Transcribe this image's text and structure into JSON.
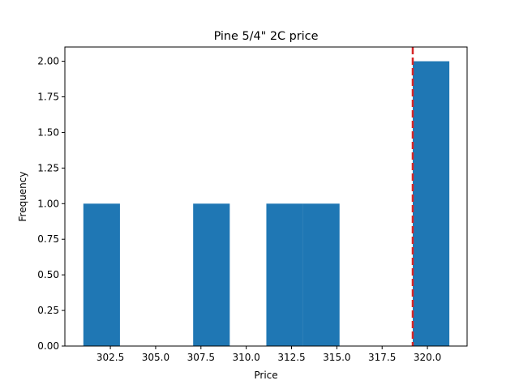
{
  "chart_data": {
    "type": "bar",
    "title": "Pine 5/4\" 2C price",
    "xlabel": "Price",
    "ylabel": "Frequency",
    "xlim": [
      299.99,
      322.19
    ],
    "ylim": [
      0,
      2.1
    ],
    "bins": [
      {
        "x0": 301.01,
        "x1": 303.03,
        "count": 1
      },
      {
        "x0": 303.03,
        "x1": 305.05,
        "count": 0
      },
      {
        "x0": 305.05,
        "x1": 307.07,
        "count": 0
      },
      {
        "x0": 307.07,
        "x1": 309.09,
        "count": 1
      },
      {
        "x0": 309.09,
        "x1": 311.11,
        "count": 0
      },
      {
        "x0": 311.11,
        "x1": 313.13,
        "count": 1
      },
      {
        "x0": 313.13,
        "x1": 315.15,
        "count": 1
      },
      {
        "x0": 315.15,
        "x1": 317.17,
        "count": 0
      },
      {
        "x0": 317.17,
        "x1": 319.19,
        "count": 0
      },
      {
        "x0": 319.19,
        "x1": 321.21,
        "count": 2
      }
    ],
    "vline": {
      "x": 319.19,
      "color": "#d62728",
      "style": "dashed"
    },
    "bar_color": "#1f77b4",
    "xticks": [
      "302.5",
      "305.0",
      "307.5",
      "310.0",
      "312.5",
      "315.0",
      "317.5",
      "320.0"
    ],
    "yticks": [
      "0.00",
      "0.25",
      "0.50",
      "0.75",
      "1.00",
      "1.25",
      "1.50",
      "1.75",
      "2.00"
    ],
    "grid": false,
    "legend": "none"
  }
}
